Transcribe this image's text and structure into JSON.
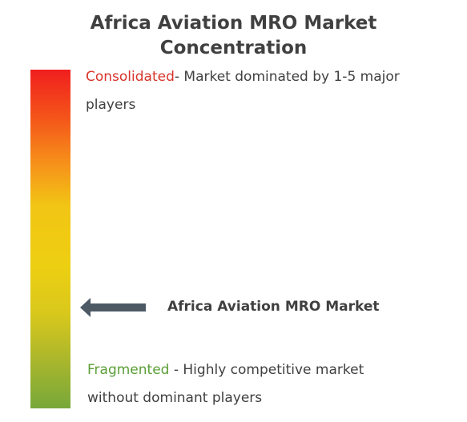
{
  "title": {
    "line1": "Africa Aviation MRO Market",
    "line2": "Concentration"
  },
  "scale": {
    "top_label": "Consolidated",
    "top_description": "- Market dominated by 1-5 major",
    "top_description_cont": "players",
    "bottom_label": "Fragmented",
    "bottom_description": " - Highly competitive market",
    "bottom_description_cont": "without dominant players",
    "colors": {
      "top": "#f01e1e",
      "middle": "#edcf12",
      "bottom": "#77a83a",
      "top_label_color": "#d9342b",
      "bottom_label_color": "#5a9e36"
    }
  },
  "marker": {
    "label": "Africa Aviation MRO Market",
    "icon": "left-arrow-icon",
    "color": "#4d5a66"
  }
}
